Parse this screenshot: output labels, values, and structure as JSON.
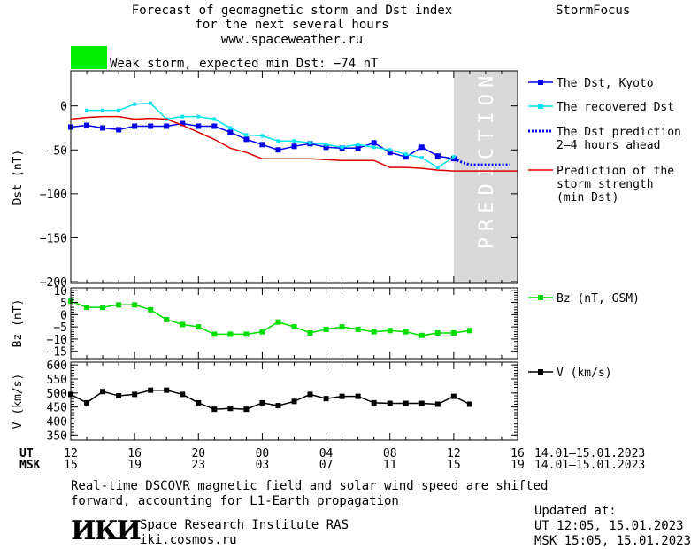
{
  "header": {
    "title_line1": "Forecast of geomagnetic storm and Dst index",
    "title_line2": "for the next several hours",
    "site": "www.spaceweather.ru",
    "brand": "StormFocus",
    "storm_color": "#00ee00",
    "storm_text": "Weak storm, expected min Dst: −74 nT"
  },
  "footer": {
    "note_line1": "Real-time DSCOVR magnetic field and solar wind speed are shifted",
    "note_line2": "forward, accounting for L1-Earth propagation",
    "logo": "ИКИ",
    "institute": "Space Research Institute RAS",
    "site": "iki.cosmos.ru",
    "updated_label": "Updated at:",
    "updated_ut": "UT   12:05, 15.01.2023",
    "updated_msk": "MSK 15:05, 15.01.2023"
  },
  "time_axis": {
    "ut_label": "UT",
    "msk_label": "MSK",
    "ut_ticks": [
      "12",
      "16",
      "20",
      "00",
      "04",
      "08",
      "12",
      "16"
    ],
    "msk_ticks": [
      "15",
      "19",
      "23",
      "03",
      "07",
      "11",
      "15",
      "19"
    ],
    "ut_range": "14.01–15.01.2023",
    "msk_range": "14.01–15.01.2023"
  },
  "colors": {
    "dst": "#0000ee",
    "recovered": "#00e5ee",
    "forecast": "#0000ee",
    "min_dst": "#dd0000",
    "bz": "#00dd00",
    "v": "#000000",
    "prediction_zone": "#d9d9d9"
  },
  "chart_data": [
    {
      "type": "line",
      "ylabel": "Dst (nT)",
      "ylim": [
        -202,
        40
      ],
      "yticks": [
        0,
        -50,
        -100,
        -150,
        -200
      ],
      "ytick_labels": [
        "0",
        "−50",
        "−100",
        "−150",
        "−200"
      ],
      "x_unit_note": "hours since 12 UT 14.01.2023",
      "xlim": [
        0,
        28
      ],
      "prediction_start": 24,
      "prediction_label": "PREDICTION",
      "series": [
        {
          "name": "The Dst, Kyoto",
          "style": "line-square",
          "color": "#0000ee",
          "x": [
            0,
            1,
            2,
            3,
            4,
            5,
            6,
            7,
            8,
            9,
            10,
            11,
            12,
            13,
            14,
            15,
            16,
            17,
            18,
            19,
            20,
            21,
            22,
            23,
            24
          ],
          "y": [
            -24,
            -22,
            -25,
            -27,
            -23,
            -23,
            -23,
            -20,
            -23,
            -23,
            -30,
            -38,
            -44,
            -50,
            -46,
            -43,
            -47,
            -48,
            -48,
            -42,
            -53,
            -58,
            -47,
            -57,
            -60
          ]
        },
        {
          "name": "The recovered Dst",
          "style": "line-square",
          "color": "#00e5ee",
          "x": [
            1,
            2,
            3,
            4,
            5,
            6,
            7,
            8,
            9,
            10,
            11,
            12,
            13,
            14,
            15,
            16,
            17,
            18,
            19,
            20,
            21,
            22,
            23,
            24
          ],
          "y": [
            -5,
            -5,
            -5,
            2,
            3,
            -15,
            -12,
            -12,
            -15,
            -25,
            -33,
            -34,
            -40,
            -40,
            -42,
            -44,
            -47,
            -44,
            -47,
            -50,
            -55,
            -59,
            -70,
            -58
          ]
        },
        {
          "name": "The Dst prediction",
          "name_line2": "2–4 hours ahead",
          "style": "dotted",
          "color": "#0000ee",
          "x": [
            24.0,
            24.5,
            25.0,
            25.5,
            26.0,
            26.5,
            27.0,
            27.5
          ],
          "y": [
            -60,
            -64,
            -67,
            -67,
            -67,
            -67,
            -67,
            -67
          ]
        },
        {
          "name": "Prediction of the",
          "name_line2": "storm strength",
          "name_line3": "(min Dst)",
          "style": "line",
          "color": "#dd0000",
          "x": [
            0,
            1,
            2,
            3,
            4,
            5,
            6,
            7,
            8,
            9,
            10,
            11,
            12,
            13,
            14,
            15,
            16,
            17,
            18,
            19,
            20,
            21,
            22,
            23,
            24,
            25,
            26,
            27,
            28
          ],
          "y": [
            -15,
            -13,
            -12,
            -12,
            -15,
            -14,
            -15,
            -22,
            -30,
            -38,
            -48,
            -53,
            -60,
            -60,
            -60,
            -60,
            -61,
            -62,
            -62,
            -62,
            -70,
            -70,
            -71,
            -73,
            -74,
            -74,
            -74,
            -74,
            -74
          ]
        }
      ]
    },
    {
      "type": "line",
      "ylabel": "Bz (nT)",
      "ylim": [
        -18,
        11
      ],
      "yticks": [
        10,
        5,
        0,
        -5,
        -10,
        -15
      ],
      "ytick_labels": [
        "10",
        "5",
        "0",
        "−5",
        "−10",
        "−15"
      ],
      "xlim": [
        0,
        28
      ],
      "series": [
        {
          "name": "Bz (nT, GSM)",
          "color": "#00dd00",
          "x": [
            0,
            1,
            2,
            3,
            4,
            5,
            6,
            7,
            8,
            9,
            10,
            11,
            12,
            13,
            14,
            15,
            16,
            17,
            18,
            19,
            20,
            21,
            22,
            23,
            24,
            25
          ],
          "y": [
            5.5,
            3,
            3,
            4,
            4,
            2,
            -2,
            -4,
            -5,
            -8,
            -8,
            -8,
            -7,
            -3,
            -5,
            -7.5,
            -6,
            -5,
            -6,
            -7,
            -6.5,
            -7,
            -8.5,
            -7.5,
            -7.5,
            -6.5
          ]
        }
      ]
    },
    {
      "type": "line",
      "ylabel": "V (km/s)",
      "ylim": [
        332,
        610
      ],
      "yticks": [
        600,
        550,
        500,
        450,
        400,
        350
      ],
      "ytick_labels": [
        "600",
        "550",
        "500",
        "450",
        "400",
        "350"
      ],
      "xlim": [
        0,
        28
      ],
      "series": [
        {
          "name": "V (km/s)",
          "color": "#000000",
          "x": [
            0,
            1,
            2,
            3,
            4,
            5,
            6,
            7,
            8,
            9,
            10,
            11,
            12,
            13,
            14,
            15,
            16,
            17,
            18,
            19,
            20,
            21,
            22,
            23,
            24,
            25
          ],
          "y": [
            495,
            465,
            505,
            490,
            495,
            510,
            510,
            495,
            465,
            442,
            445,
            442,
            465,
            455,
            470,
            495,
            480,
            488,
            488,
            465,
            463,
            463,
            463,
            460,
            488,
            460
          ]
        }
      ]
    }
  ]
}
